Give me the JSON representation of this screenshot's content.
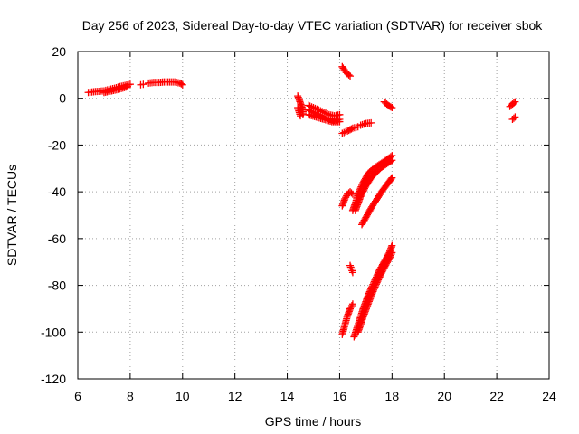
{
  "chart_data": {
    "type": "scatter",
    "title": "Day 256 of 2023, Sidereal Day-to-day VTEC variation (SDTVAR) for receiver sbok",
    "xlabel": "GPS time / hours",
    "ylabel": "SDTVAR / TECUs",
    "xlim": [
      6,
      24
    ],
    "ylim": [
      -120,
      20
    ],
    "x_ticks": [
      6,
      8,
      10,
      12,
      14,
      16,
      18,
      20,
      22,
      24
    ],
    "y_ticks": [
      20,
      0,
      -20,
      -40,
      -60,
      -80,
      -100,
      -120
    ],
    "x_tick_labels": [
      "6",
      "8",
      "10",
      "12",
      "14",
      "16",
      "18",
      "20",
      "22",
      "24"
    ],
    "y_tick_labels": [
      "20",
      "0",
      "-20",
      "-40",
      "-60",
      "-80",
      "-100",
      "-120"
    ],
    "grid": true,
    "marker": "plus",
    "color": "#ff0000",
    "series": [
      {
        "segments": [
          {
            "x": [
              6.4,
              6.6,
              6.8,
              7.0,
              7.2,
              7.4,
              7.6,
              7.8,
              8.0
            ],
            "y": [
              2.5,
              2.8,
              3.0,
              3.2,
              3.8,
              4.3,
              5.0,
              5.5,
              6.0
            ]
          },
          {
            "x": [
              7.0,
              7.3,
              7.6,
              7.9
            ],
            "y": [
              2.5,
              3.2,
              4.0,
              5.0
            ]
          },
          {
            "x": [
              8.4,
              8.5
            ],
            "y": [
              5.8,
              6.0
            ]
          },
          {
            "x": [
              8.7,
              8.9,
              9.1,
              9.3,
              9.5,
              9.7,
              9.9,
              10.0
            ],
            "y": [
              6.5,
              6.8,
              6.8,
              7.0,
              7.0,
              7.0,
              6.5,
              5.8
            ]
          },
          {
            "x": [
              14.4,
              14.5,
              14.6,
              14.6
            ],
            "y": [
              1.0,
              -2.0,
              -5.0,
              -7.0
            ]
          },
          {
            "x": [
              14.4,
              14.5
            ],
            "y": [
              -4.0,
              -7.5
            ]
          },
          {
            "x": [
              14.8,
              15.0,
              15.2,
              15.4,
              15.6,
              15.8,
              16.0
            ],
            "y": [
              -3.0,
              -4.0,
              -5.0,
              -6.0,
              -7.0,
              -7.5,
              -7.0
            ]
          },
          {
            "x": [
              14.8,
              15.0,
              15.2,
              15.4,
              15.6,
              15.8,
              16.0
            ],
            "y": [
              -5.0,
              -6.0,
              -7.0,
              -8.0,
              -9.0,
              -9.5,
              -9.0
            ]
          },
          {
            "x": [
              14.8,
              15.1,
              15.4,
              15.7,
              16.0
            ],
            "y": [
              -7.0,
              -8.0,
              -9.0,
              -10.0,
              -10.0
            ]
          },
          {
            "x": [
              16.1,
              16.25,
              16.4
            ],
            "y": [
              13.5,
              11.0,
              9.5
            ]
          },
          {
            "x": [
              16.1,
              16.3,
              16.5,
              16.7
            ],
            "y": [
              -15.0,
              -14.0,
              -12.8,
              -12.2
            ]
          },
          {
            "x": [
              16.8,
              17.0,
              17.2
            ],
            "y": [
              -11.5,
              -10.8,
              -10.5
            ]
          },
          {
            "x": [
              17.7,
              17.85,
              18.0
            ],
            "y": [
              -1.5,
              -3.0,
              -4.0
            ]
          },
          {
            "x": [
              16.1,
              16.2,
              16.3,
              16.4,
              16.5
            ],
            "y": [
              -46.0,
              -43.0,
              -41.0,
              -40.0,
              -41.0
            ]
          },
          {
            "x": [
              16.5,
              16.6,
              16.7,
              16.9,
              17.1,
              17.3,
              17.5,
              17.7,
              17.9,
              18.0
            ],
            "y": [
              -48.0,
              -45.0,
              -41.0,
              -36.0,
              -32.0,
              -30.0,
              -28.5,
              -27.0,
              -25.5,
              -24.5
            ]
          },
          {
            "x": [
              16.6,
              16.8,
              17.0,
              17.2,
              17.4,
              17.6,
              17.8,
              18.0
            ],
            "y": [
              -48.0,
              -42.0,
              -37.5,
              -34.0,
              -31.5,
              -29.5,
              -28.0,
              -26.5
            ]
          },
          {
            "x": [
              16.85,
              17.0,
              17.2,
              17.4,
              17.6,
              17.8,
              18.0
            ],
            "y": [
              -54.0,
              -51.0,
              -47.0,
              -43.5,
              -40.0,
              -37.0,
              -34.0
            ]
          },
          {
            "x": [
              16.4,
              16.45,
              16.5
            ],
            "y": [
              -71.5,
              -73.0,
              -74.5
            ]
          },
          {
            "x": [
              16.1,
              16.2,
              16.3,
              16.4,
              16.5
            ],
            "y": [
              -101.0,
              -97.0,
              -93.0,
              -90.0,
              -88.0
            ]
          },
          {
            "x": [
              16.55,
              16.7,
              16.9,
              17.1,
              17.3,
              17.5,
              17.7,
              17.9,
              18.0
            ],
            "y": [
              -102.0,
              -97.0,
              -90.0,
              -84.0,
              -79.0,
              -74.0,
              -70.0,
              -66.0,
              -63.0
            ]
          },
          {
            "x": [
              16.7,
              16.9,
              17.1,
              17.3,
              17.5,
              17.7,
              17.9,
              18.0
            ],
            "y": [
              -100.0,
              -93.5,
              -87.5,
              -82.0,
              -77.0,
              -72.5,
              -68.5,
              -66.0
            ]
          },
          {
            "x": [
              22.5,
              22.6,
              22.7
            ],
            "y": [
              -3.5,
              -2.5,
              -1.5
            ]
          },
          {
            "x": [
              22.6,
              22.7
            ],
            "y": [
              -9.0,
              -8.0
            ]
          }
        ]
      }
    ]
  }
}
